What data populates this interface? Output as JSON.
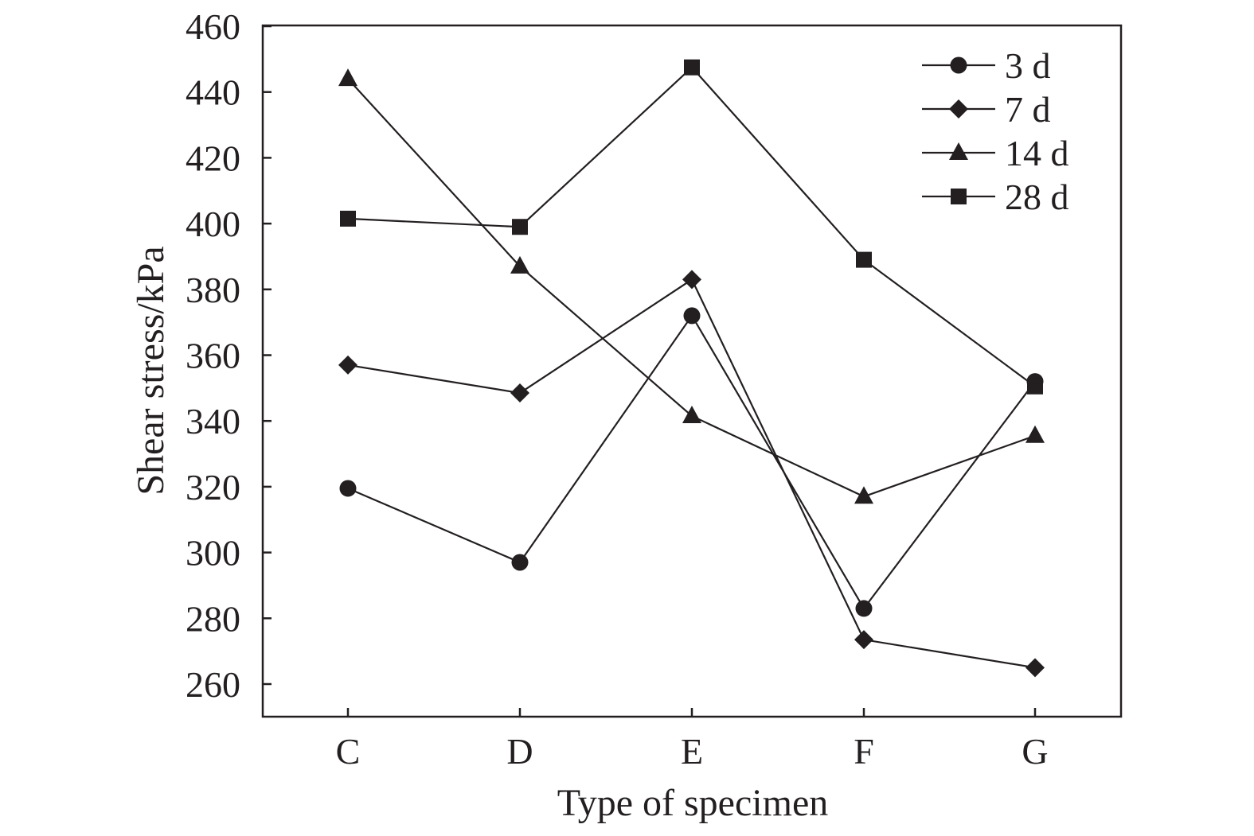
{
  "chart_data": {
    "type": "line",
    "xlabel": "Type of specimen",
    "ylabel": "Shear stress/kPa",
    "categories": [
      "C",
      "D",
      "E",
      "F",
      "G"
    ],
    "ylim": [
      250,
      460
    ],
    "yticks": [
      260,
      280,
      300,
      320,
      340,
      360,
      380,
      400,
      420,
      440,
      460
    ],
    "grid": false,
    "legend_position": "top-right",
    "line_color": "#231f20",
    "series": [
      {
        "name": "3 d",
        "marker": "circle",
        "values": [
          319.5,
          297,
          372,
          283,
          352
        ]
      },
      {
        "name": "7 d",
        "marker": "diamond",
        "values": [
          357,
          348.5,
          383,
          273.5,
          265
        ]
      },
      {
        "name": "14 d",
        "marker": "triangle",
        "values": [
          444,
          387,
          341.5,
          317,
          335.5
        ]
      },
      {
        "name": "28 d",
        "marker": "square",
        "values": [
          401.5,
          399,
          447.5,
          389,
          350.5
        ]
      }
    ]
  }
}
